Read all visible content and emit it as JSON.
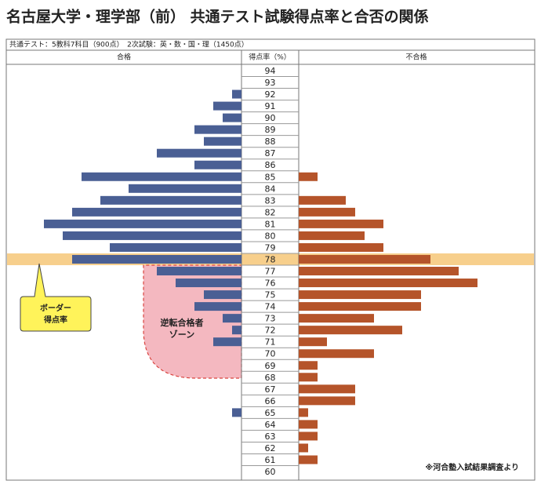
{
  "chart_data": {
    "type": "butterfly",
    "title": "名古屋大学・理学部（前） 共通テスト試験得点率と合否の関係",
    "subtitle": "共通テスト：5教科7科目（900点）　2次試験：英・数・国・理（1450点）",
    "category_header": "得点率（%）",
    "categories": [
      94,
      93,
      92,
      91,
      90,
      89,
      88,
      87,
      86,
      85,
      84,
      83,
      82,
      81,
      80,
      79,
      78,
      77,
      76,
      75,
      74,
      73,
      72,
      71,
      70,
      69,
      68,
      67,
      66,
      65,
      64,
      63,
      62,
      61,
      60
    ],
    "series": [
      {
        "name": "合格",
        "color": "#4a5f94",
        "values": [
          0,
          0,
          1,
          3,
          2,
          5,
          4,
          9,
          5,
          17,
          12,
          15,
          18,
          21,
          19,
          14,
          18,
          9,
          7,
          4,
          5,
          2,
          1,
          3,
          0,
          0,
          0,
          0,
          0,
          1,
          0,
          0,
          0,
          0,
          0
        ]
      },
      {
        "name": "不合格",
        "color": "#b5542a",
        "values": [
          0,
          0,
          0,
          0,
          0,
          0,
          0,
          0,
          0,
          2,
          0,
          5,
          6,
          9,
          7,
          9,
          14,
          17,
          19,
          13,
          13,
          8,
          11,
          3,
          8,
          2,
          2,
          6,
          6,
          1,
          2,
          2,
          1,
          2,
          0
        ]
      }
    ],
    "xlim": [
      0,
      25
    ],
    "highlight": 78,
    "highlight_color": "#f7cf8c",
    "annotations": {
      "border": [
        "ボーダー",
        "得点率"
      ],
      "zone": [
        "逆転合格者",
        "ゾーン"
      ]
    },
    "source": "※河合塾入試結果調査より"
  }
}
